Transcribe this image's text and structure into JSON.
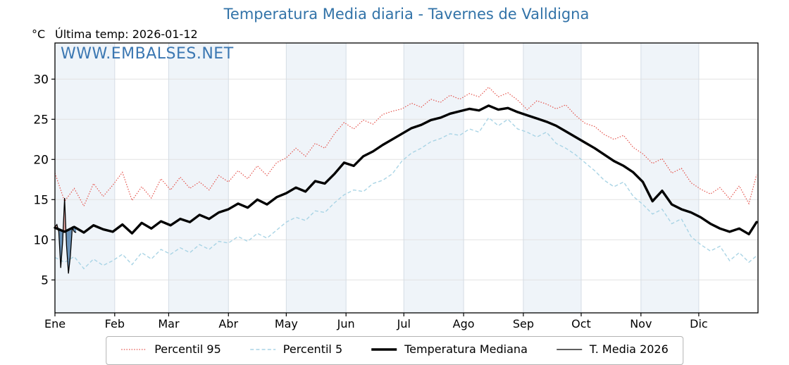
{
  "header": {
    "title": "Temperatura Media diaria - Tavernes de Valldigna",
    "y_axis_unit": "°C",
    "last_temp": "Última temp: 2026-01-12"
  },
  "watermark": "WWW.EMBALSES.NET",
  "colors": {
    "title_blue": "#3273a8",
    "watermark_blue": "#3b77b2",
    "p95_red": "#e4534c",
    "p5_blue": "#a9d4e5",
    "median_black": "#000000",
    "media2026_black": "#000000",
    "fill_above": "#e5a8a4",
    "fill_below": "#6c94ba",
    "band_shaded": "#eff4f9",
    "band_plain": "#ffffff",
    "grid_vertical": "#d5dde5",
    "grid_horizontal": "#e2e2e2",
    "axis_frame": "#000000"
  },
  "chart_data": {
    "type": "line",
    "title": "Temperatura Media diaria - Tavernes de Valldigna",
    "ylabel_unit": "°C",
    "grid": true,
    "legend_position": "bottom",
    "x_tick_labels": [
      "Ene",
      "Feb",
      "Mar",
      "Abr",
      "May",
      "Jun",
      "Jul",
      "Ago",
      "Sep",
      "Oct",
      "Nov",
      "Dic"
    ],
    "month_start_day": [
      1,
      32,
      60,
      91,
      121,
      152,
      182,
      213,
      244,
      274,
      305,
      335
    ],
    "days_in_year": 365,
    "yticks": [
      5,
      10,
      15,
      20,
      25,
      30
    ],
    "ylim": [
      0.9,
      34.5
    ],
    "sample_days": [
      1,
      6,
      11,
      16,
      21,
      26,
      31,
      36,
      41,
      46,
      51,
      56,
      61,
      66,
      71,
      76,
      81,
      86,
      91,
      96,
      101,
      106,
      111,
      116,
      121,
      126,
      131,
      136,
      141,
      146,
      151,
      156,
      161,
      166,
      171,
      176,
      181,
      186,
      191,
      196,
      201,
      206,
      211,
      216,
      221,
      226,
      231,
      236,
      241,
      246,
      251,
      256,
      261,
      266,
      271,
      276,
      281,
      286,
      291,
      296,
      301,
      306,
      311,
      316,
      321,
      326,
      331,
      336,
      341,
      346,
      351,
      356,
      361,
      365
    ],
    "series": [
      {
        "name": "Percentil 95",
        "style": "dotted",
        "values": [
          18.3,
          14.8,
          16.4,
          14.2,
          17.0,
          15.4,
          16.8,
          18.4,
          14.9,
          16.6,
          15.2,
          17.6,
          16.2,
          17.8,
          16.4,
          17.2,
          16.2,
          18.0,
          17.2,
          18.6,
          17.6,
          19.2,
          18.0,
          19.6,
          20.2,
          21.4,
          20.4,
          22.0,
          21.4,
          23.2,
          24.6,
          23.8,
          24.9,
          24.4,
          25.6,
          26.0,
          26.3,
          27.0,
          26.5,
          27.5,
          27.1,
          28.0,
          27.5,
          28.2,
          27.8,
          29.0,
          27.8,
          28.3,
          27.4,
          26.2,
          27.3,
          26.9,
          26.3,
          26.8,
          25.5,
          24.5,
          24.1,
          23.1,
          22.5,
          23.0,
          21.5,
          20.7,
          19.5,
          20.1,
          18.3,
          18.9,
          17.1,
          16.3,
          15.7,
          16.5,
          15.1,
          16.7,
          14.5,
          18.1
        ]
      },
      {
        "name": "Percentil 5",
        "style": "dashed",
        "values": [
          7.8,
          7.2,
          7.9,
          6.4,
          7.6,
          6.8,
          7.4,
          8.2,
          6.9,
          8.4,
          7.6,
          8.8,
          8.2,
          9.0,
          8.4,
          9.4,
          8.8,
          9.8,
          9.6,
          10.4,
          9.8,
          10.8,
          10.2,
          11.2,
          12.2,
          12.8,
          12.4,
          13.6,
          13.4,
          14.6,
          15.6,
          16.2,
          16.0,
          17.0,
          17.4,
          18.2,
          19.8,
          20.8,
          21.4,
          22.2,
          22.6,
          23.2,
          23.0,
          23.8,
          23.4,
          25.2,
          24.2,
          25.0,
          23.8,
          23.4,
          22.8,
          23.4,
          22.0,
          21.4,
          20.6,
          19.6,
          18.6,
          17.4,
          16.6,
          17.2,
          15.4,
          14.4,
          13.2,
          13.8,
          12.0,
          12.6,
          10.4,
          9.4,
          8.6,
          9.2,
          7.4,
          8.4,
          7.2,
          8.0
        ]
      },
      {
        "name": "Temperatura Mediana",
        "style": "solid-thick",
        "values": [
          11.5,
          11.0,
          11.6,
          10.9,
          11.8,
          11.3,
          11.0,
          11.9,
          10.8,
          12.1,
          11.4,
          12.3,
          11.8,
          12.6,
          12.2,
          13.1,
          12.6,
          13.4,
          13.8,
          14.5,
          14.0,
          15.0,
          14.4,
          15.3,
          15.8,
          16.5,
          16.0,
          17.3,
          17.0,
          18.2,
          19.6,
          19.2,
          20.4,
          21.0,
          21.8,
          22.5,
          23.2,
          23.9,
          24.3,
          24.9,
          25.2,
          25.7,
          26.0,
          26.3,
          26.1,
          26.7,
          26.2,
          26.4,
          25.9,
          25.5,
          25.1,
          24.7,
          24.2,
          23.5,
          22.8,
          22.1,
          21.4,
          20.6,
          19.8,
          19.2,
          18.4,
          17.2,
          14.8,
          16.1,
          14.4,
          13.8,
          13.4,
          12.8,
          12.0,
          11.4,
          11.0,
          11.4,
          10.7,
          12.2
        ]
      },
      {
        "name": "T. Media 2026",
        "style": "solid-thin",
        "days": [
          1,
          2,
          3,
          4,
          5,
          6,
          7,
          8,
          9,
          10,
          11,
          12
        ],
        "values": [
          11.6,
          11.9,
          11.0,
          6.5,
          9.8,
          15.2,
          9.3,
          5.8,
          8.0,
          11.5,
          11.0,
          10.9
        ]
      }
    ],
    "fill_between": {
      "series_a": "T. Media 2026",
      "series_b": "Temperatura Mediana",
      "above": "pink",
      "below": "steelblue"
    }
  }
}
